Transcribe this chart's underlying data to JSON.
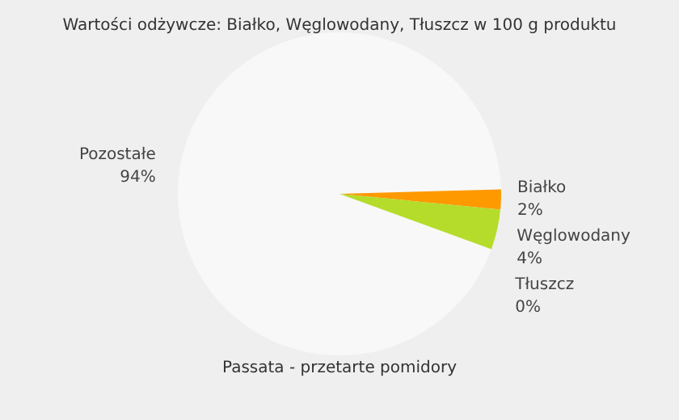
{
  "chart_data": {
    "type": "pie",
    "title": "Wartości odżywcze: Białko, Węglowodany, Tłuszcz w 100 g produktu",
    "subtitle": "Passata - przetarte pomidory",
    "categories": [
      "Pozostałe",
      "Białko",
      "Węglowodany",
      "Tłuszcz"
    ],
    "values": [
      94,
      2,
      4,
      0
    ],
    "value_labels": [
      "94%",
      "2%",
      "4%",
      "0%"
    ],
    "colors": [
      "#f8f8f8",
      "#ff9900",
      "#b5dc2a",
      "#f44b3a"
    ],
    "legend": false
  }
}
